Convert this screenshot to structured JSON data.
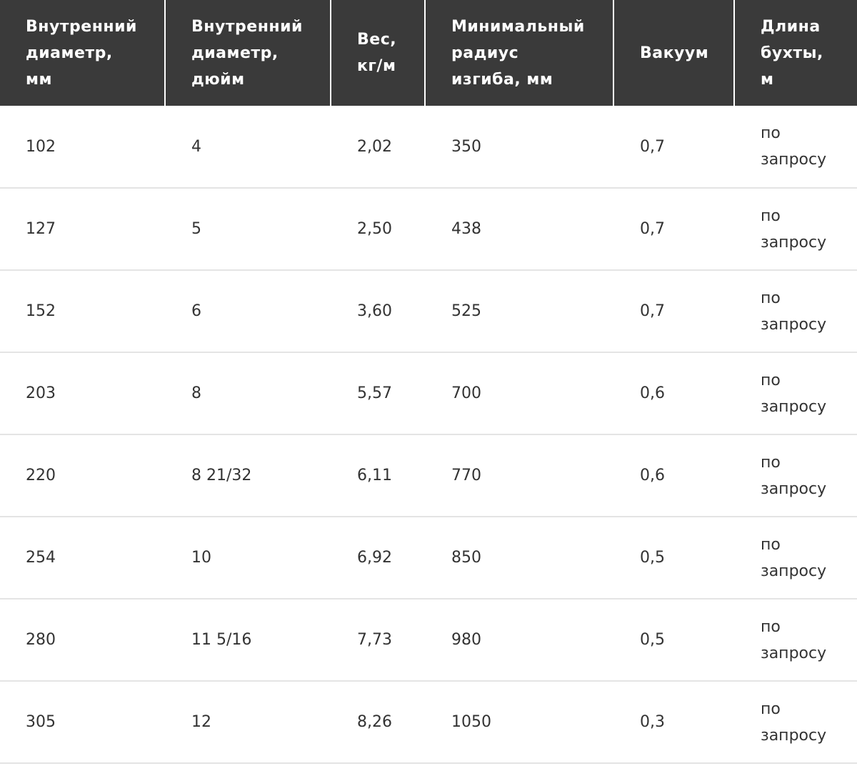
{
  "table": {
    "header": [
      "Внутренний диаметр, мм",
      "Внутренний диаметр, дюйм",
      "Вес, кг/м",
      "Минимальный радиус изгиба, мм",
      "Вакуум",
      "Длина бухты, м"
    ],
    "rows": [
      [
        "102",
        "4",
        "2,02",
        "350",
        "0,7",
        "по запросу"
      ],
      [
        "127",
        "5",
        "2,50",
        "438",
        "0,7",
        "по запросу"
      ],
      [
        "152",
        "6",
        "3,60",
        "525",
        "0,7",
        "по запросу"
      ],
      [
        "203",
        "8",
        "5,57",
        "700",
        "0,6",
        "по запросу"
      ],
      [
        "220",
        "8 21/32",
        "6,11",
        "770",
        "0,6",
        "по запросу"
      ],
      [
        "254",
        "10",
        "6,92",
        "850",
        "0,5",
        "по запросу"
      ],
      [
        "280",
        "11 5/16",
        "7,73",
        "980",
        "0,5",
        "по запросу"
      ],
      [
        "305",
        "12",
        "8,26",
        "1050",
        "0,3",
        "по запросу"
      ]
    ]
  }
}
